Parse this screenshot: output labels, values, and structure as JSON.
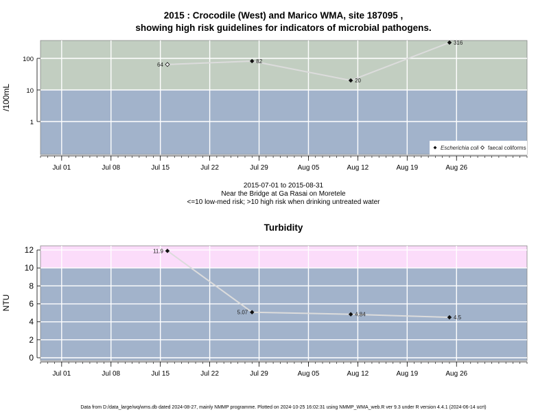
{
  "chart_data": [
    {
      "type": "line",
      "title_line1": "2015 : Crocodile (West) and Marico WMA, site 187095 ,",
      "title_line2": "showing high risk guidelines for indicators of microbial pathogens.",
      "ylabel": "/100mL",
      "y_scale": "log10",
      "y_ticks": [
        "1",
        "10",
        "100"
      ],
      "x_ticks": [
        "Jul 01",
        "Jul 08",
        "Jul 15",
        "Jul 22",
        "Jul 29",
        "Aug 05",
        "Aug 12",
        "Aug 19",
        "Aug 26"
      ],
      "x_range": [
        "2015-06-28",
        "2015-09-05"
      ],
      "threshold": 10,
      "band_colors": {
        "high_risk": "#c2cec1",
        "low_risk": "#a2b3cb"
      },
      "grid": true,
      "legend_position": "bottom-right",
      "series": [
        {
          "name": "Escherichia coli",
          "marker": "filled-diamond",
          "points": [
            {
              "x": "2015-07-28",
              "y": 82,
              "label": "82"
            },
            {
              "x": "2015-08-11",
              "y": 20,
              "label": "20"
            },
            {
              "x": "2015-08-25",
              "y": 316,
              "label": "316"
            }
          ]
        },
        {
          "name": "faecal coliforms",
          "marker": "open-diamond",
          "points": [
            {
              "x": "2015-07-16",
              "y": 64,
              "label": "64"
            }
          ]
        }
      ],
      "line_path": [
        {
          "x": "2015-07-16",
          "y": 64
        },
        {
          "x": "2015-07-28",
          "y": 82
        },
        {
          "x": "2015-08-11",
          "y": 20
        },
        {
          "x": "2015-08-25",
          "y": 316
        }
      ]
    },
    {
      "type": "line",
      "title": "Turbidity",
      "ylabel": "NTU",
      "y_scale": "linear",
      "ylim": [
        -0.5,
        12.5
      ],
      "y_ticks": [
        "0",
        "2",
        "4",
        "6",
        "8",
        "10",
        "12"
      ],
      "x_ticks": [
        "Jul 01",
        "Jul 08",
        "Jul 15",
        "Jul 22",
        "Jul 29",
        "Aug 05",
        "Aug 12",
        "Aug 19",
        "Aug 26"
      ],
      "x_range": [
        "2015-06-28",
        "2015-09-05"
      ],
      "threshold": 10,
      "band_colors": {
        "high_risk": "#fbdcfa",
        "low_risk": "#a2b3cb"
      },
      "grid": true,
      "series": [
        {
          "name": "",
          "marker": "filled-diamond",
          "points": [
            {
              "x": "2015-07-16",
              "y": 11.9,
              "label": "11.9"
            },
            {
              "x": "2015-07-28",
              "y": 5.07,
              "label": "5.07"
            },
            {
              "x": "2015-08-11",
              "y": 4.84,
              "label": "4.84"
            },
            {
              "x": "2015-08-25",
              "y": 4.5,
              "label": "4.5"
            }
          ]
        }
      ]
    }
  ],
  "middle_text": {
    "line1": "2015-07-01 to 2015-08-31",
    "line2": "Near the Bridge at Ga Rasai on Moretele",
    "line3": "<=10 low-med risk; >10 high risk when drinking untreated water"
  },
  "footer": "Data from D:/data_large/wq/wms.db dated 2024-08-27, mainly NMMP programme. Plotted on 2024-10-25 16:02:31 using NMMP_WMA_web.R ver 9.3 under R version 4.4.1 (2024-06-14 ucrt)"
}
